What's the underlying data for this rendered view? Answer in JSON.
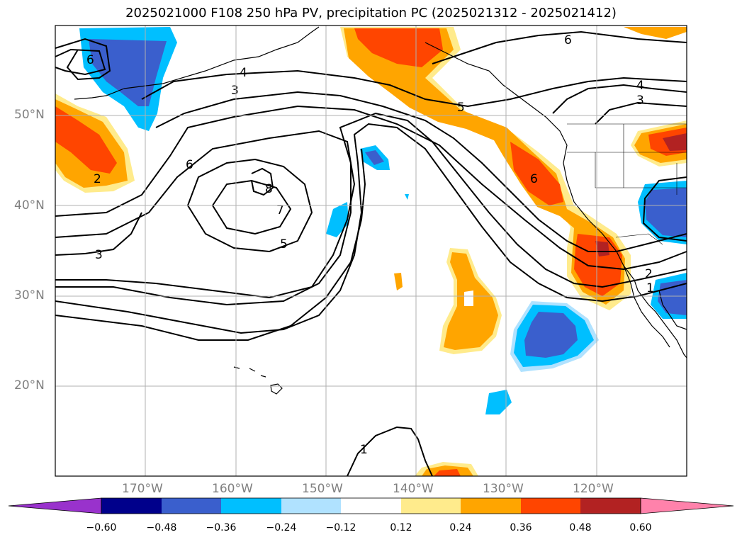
{
  "title": "2025021000 F108 250 hPa PV, precipitation PC (2025021312 - 2025021412)",
  "map": {
    "lon_range": [
      -180,
      -110
    ],
    "lat_range": [
      10,
      60
    ],
    "lat_ticks": [
      "50°N",
      "40°N",
      "30°N",
      "20°N"
    ],
    "lon_ticks": [
      "170°W",
      "160°W",
      "150°W",
      "140°W",
      "130°W",
      "120°W"
    ],
    "land_color": "#ffffff",
    "ocean_color": "#ffffff",
    "gridlines": true
  },
  "contours": {
    "variable": "250 hPa PV",
    "labels": [
      "6",
      "4",
      "3",
      "6",
      "2",
      "3",
      "8",
      "7",
      "5",
      "6",
      "5",
      "6",
      "4",
      "3",
      "2",
      "1",
      "1"
    ]
  },
  "colorbar": {
    "ticks": [
      "−0.60",
      "−0.48",
      "−0.36",
      "−0.24",
      "−0.12",
      "0.12",
      "0.24",
      "0.36",
      "0.48",
      "0.60"
    ],
    "colors": [
      "#9932CC",
      "#00008B",
      "#3A5FCD",
      "#00BFFF",
      "#B0E2FF",
      "#FFFFFF",
      "#FFEB8C",
      "#FFA500",
      "#FF4500",
      "#B22222",
      "#FF82AB"
    ]
  }
}
